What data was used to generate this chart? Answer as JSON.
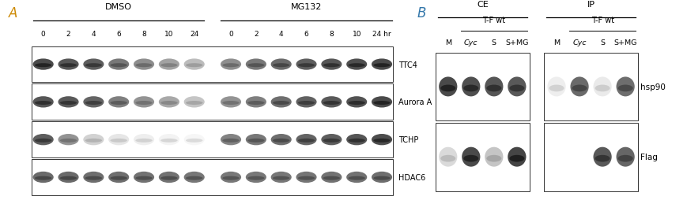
{
  "fig_width": 8.69,
  "fig_height": 2.55,
  "dpi": 100,
  "bg_color": "#ffffff",
  "panel_A": {
    "label": "A",
    "label_color": "#cc8800",
    "dmso_label": "DMSO",
    "mg132_label": "MG132",
    "time_labels_dmso": [
      "0",
      "2",
      "4",
      "6",
      "8",
      "10",
      "24"
    ],
    "time_labels_mg132": [
      "0",
      "2",
      "4",
      "6",
      "8",
      "10",
      "24 hr"
    ],
    "row_labels": [
      "TTC4",
      "Aurora A",
      "TCHP",
      "HDAC6"
    ],
    "bands": {
      "TTC4": {
        "intensities_dmso": [
          0.88,
          0.82,
          0.78,
          0.65,
          0.55,
          0.45,
          0.32
        ],
        "intensities_mg132": [
          0.55,
          0.65,
          0.72,
          0.78,
          0.82,
          0.85,
          0.88
        ]
      },
      "Aurora A": {
        "intensities_dmso": [
          0.82,
          0.8,
          0.75,
          0.62,
          0.52,
          0.42,
          0.28
        ],
        "intensities_mg132": [
          0.52,
          0.62,
          0.7,
          0.76,
          0.8,
          0.84,
          0.88
        ]
      },
      "TCHP": {
        "intensities_dmso": [
          0.78,
          0.52,
          0.22,
          0.12,
          0.08,
          0.06,
          0.04
        ],
        "intensities_mg132": [
          0.6,
          0.65,
          0.7,
          0.75,
          0.78,
          0.82,
          0.86
        ]
      },
      "HDAC6": {
        "intensities_dmso": [
          0.72,
          0.72,
          0.7,
          0.7,
          0.68,
          0.68,
          0.66
        ],
        "intensities_mg132": [
          0.65,
          0.65,
          0.66,
          0.67,
          0.68,
          0.68,
          0.7
        ]
      }
    }
  },
  "panel_B": {
    "label": "B",
    "label_color": "#3377aa",
    "ce_label": "CE",
    "ip_label": "IP",
    "tf_wt_label": "T-F wt",
    "sample_labels": [
      "M",
      "Cyc",
      "S",
      "S+MG"
    ],
    "CE_hsp90": [
      0.88,
      0.85,
      0.82,
      0.8
    ],
    "CE_Flag": [
      0.18,
      0.88,
      0.28,
      0.9
    ],
    "IP_hsp90": [
      0.08,
      0.72,
      0.1,
      0.7
    ],
    "IP_Flag": [
      0.0,
      0.0,
      0.8,
      0.74
    ],
    "row_labels": [
      "hsp90",
      "Flag"
    ]
  }
}
